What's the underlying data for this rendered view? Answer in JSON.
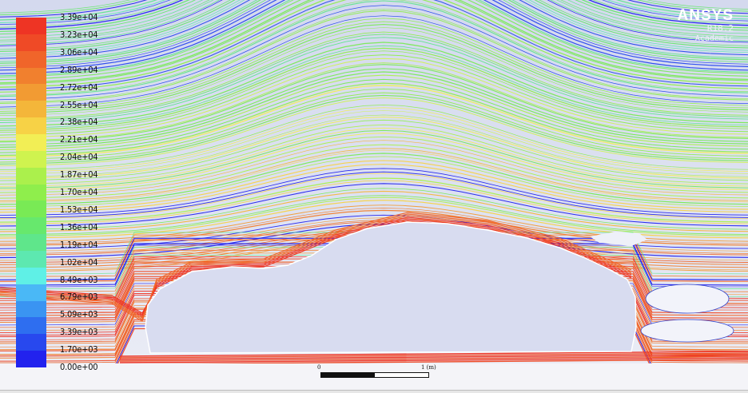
{
  "legend": {
    "labels": [
      "3.39e+04",
      "3.23e+04",
      "3.06e+04",
      "2.89e+04",
      "2.72e+04",
      "2.55e+04",
      "2.38e+04",
      "2.21e+04",
      "2.04e+04",
      "1.87e+04",
      "1.70e+04",
      "1.53e+04",
      "1.36e+04",
      "1.19e+04",
      "1.02e+04",
      "8.49e+03",
      "6.79e+03",
      "5.09e+03",
      "3.39e+03",
      "1.70e+03",
      "0.00e+00"
    ],
    "colors": [
      "#ee3424",
      "#ef4a26",
      "#f0652a",
      "#f1802e",
      "#f29b33",
      "#f4b63a",
      "#f7d246",
      "#f2ee55",
      "#cff34f",
      "#abf04c",
      "#8fee4c",
      "#79ea55",
      "#67e86d",
      "#5fe68b",
      "#5de8b0",
      "#5ff0e6",
      "#4ab8f6",
      "#3a94f2",
      "#2e6ef0",
      "#2848ee",
      "#2222ee"
    ]
  },
  "brand": {
    "name": "ANSYS",
    "version": "R18.2",
    "edition": "Academic"
  },
  "scale": {
    "left_label": "0",
    "right_label": "1 (m)"
  },
  "theme": {
    "background": "#d4d9ee",
    "body_fill": "#d8dcf0",
    "ground": "#f5f5f8"
  }
}
